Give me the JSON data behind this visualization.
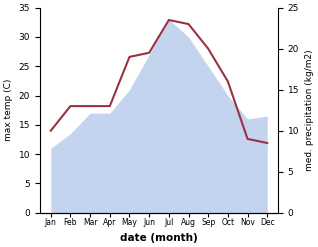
{
  "months": [
    "Jan",
    "Feb",
    "Mar",
    "Apr",
    "May",
    "Jun",
    "Jul",
    "Aug",
    "Sep",
    "Oct",
    "Nov",
    "Dec"
  ],
  "temperature": [
    11,
    13.5,
    17,
    17,
    21,
    27,
    33,
    30,
    25,
    20,
    16,
    16.5
  ],
  "precipitation": [
    10,
    13,
    13,
    13,
    19,
    19.5,
    23.5,
    23,
    20,
    16,
    9,
    8.5
  ],
  "temp_color_fill": "#c5d4ee",
  "precip_color": "#993344",
  "temp_ylim": [
    0,
    35
  ],
  "precip_ylim": [
    0,
    25
  ],
  "temp_yticks": [
    0,
    5,
    10,
    15,
    20,
    25,
    30,
    35
  ],
  "precip_yticks": [
    0,
    5,
    10,
    15,
    20,
    25
  ],
  "xlabel": "date (month)",
  "ylabel_left": "max temp (C)",
  "ylabel_right": "med. precipitation (kg/m2)",
  "background_color": "#ffffff"
}
